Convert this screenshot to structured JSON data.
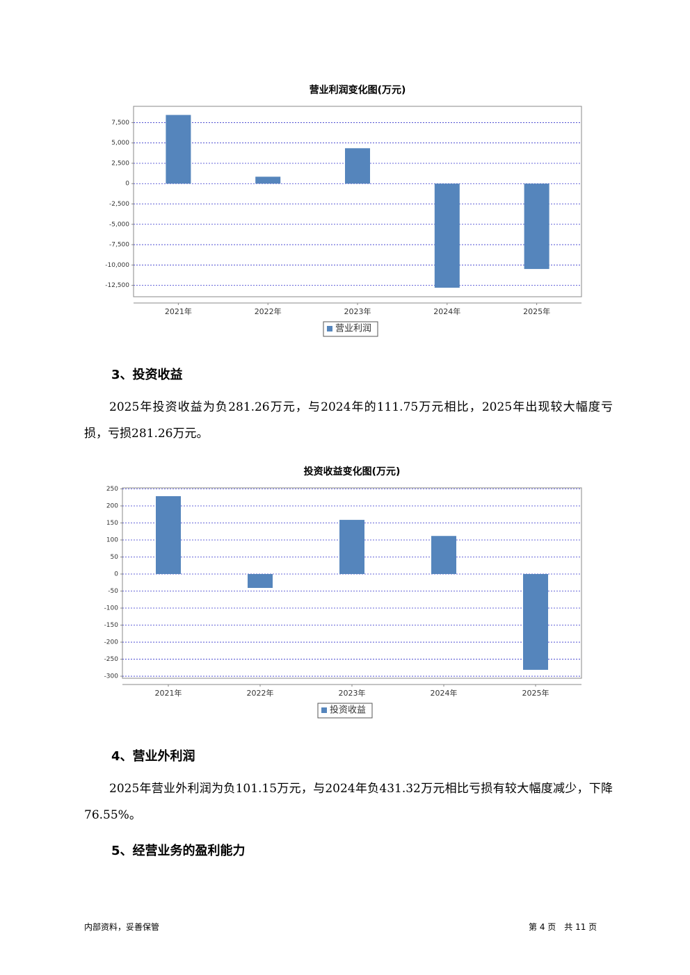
{
  "chart_data": [
    {
      "type": "bar",
      "title": "营业利润变化图(万元)",
      "categories": [
        "2021年",
        "2022年",
        "2023年",
        "2024年",
        "2025年"
      ],
      "series": [
        {
          "name": "营业利润",
          "color": "#5585bc",
          "values": [
            8440,
            850,
            4350,
            -12790,
            -10490
          ]
        }
      ],
      "ylim": [
        -13900,
        9500
      ],
      "yticks": [
        {
          "value": 7500,
          "label": "7,500"
        },
        {
          "value": 5000,
          "label": "5,000"
        },
        {
          "value": 2500,
          "label": "2,500"
        },
        0,
        {
          "value": -2500,
          "label": "-2,500"
        },
        {
          "value": -5000,
          "label": "-5,000"
        },
        {
          "value": -7500,
          "label": "-7,500"
        },
        {
          "value": -10000,
          "label": "-10,000"
        },
        {
          "value": -12500,
          "label": "-12,500"
        }
      ],
      "grid": true
    },
    {
      "type": "bar",
      "title": "投资收益变化图(万元)",
      "categories": [
        "2021年",
        "2022年",
        "2023年",
        "2024年",
        "2025年"
      ],
      "series": [
        {
          "name": "投资收益",
          "color": "#5585bc",
          "values": [
            228.6,
            -40.8,
            159,
            111.75,
            -281.26
          ]
        }
      ],
      "ylim": [
        -306,
        253
      ],
      "yticks": [
        250,
        200,
        150,
        100,
        50,
        0,
        -50,
        -100,
        -150,
        -200,
        -250,
        -300
      ],
      "grid": true
    }
  ],
  "sections": [
    {
      "heading": "3、投资收益",
      "body": "2025年投资收益为负281.26万元，与2024年的111.75万元相比，2025年出现较大幅度亏损，亏损281.26万元。"
    },
    {
      "heading": "4、营业外利润",
      "body": "2025年营业外利润为负101.15万元，与2024年负431.32万元相比亏损有较大幅度减少，下降76.55%。"
    },
    {
      "heading": "5、经营业务的盈利能力"
    }
  ],
  "footer": {
    "left": "内部资料，妥善保管",
    "right": "第 4 页　共 11 页"
  }
}
